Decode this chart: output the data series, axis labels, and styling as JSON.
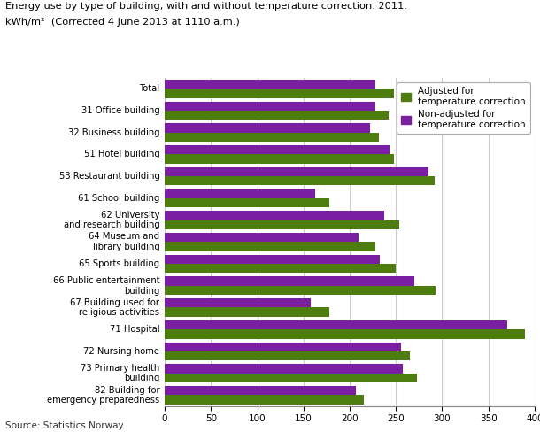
{
  "title_line1": "Energy use by type of building, with and without temperature correction. 2011.",
  "title_line2": "kWh/m²  (Corrected 4 June 2013 at 1110 a.m.)",
  "source": "Source: Statistics Norway.",
  "categories": [
    "Total",
    "31 Office building",
    "32 Business building",
    "51 Hotel building",
    "53 Restaurant building",
    "61 School building",
    "62 University\nand research building",
    "64 Museum and\nlibrary building",
    "65 Sports building",
    "66 Public entertainment\nbuilding",
    "67 Building used for\nreligious activities",
    "71 Hospital",
    "72 Nursing home",
    "73 Primary health\nbuilding",
    "82 Building for\nemergency preparedness"
  ],
  "adjusted": [
    248,
    242,
    232,
    248,
    292,
    178,
    254,
    228,
    250,
    293,
    178,
    390,
    265,
    273,
    215
  ],
  "non_adjusted": [
    228,
    228,
    222,
    243,
    285,
    163,
    237,
    210,
    233,
    270,
    158,
    370,
    256,
    257,
    207
  ],
  "color_adjusted": "#4d7c0f",
  "color_non_adjusted": "#7b1fa2",
  "xlim": [
    0,
    400
  ],
  "xticks": [
    0,
    50,
    100,
    150,
    200,
    250,
    300,
    350,
    400
  ],
  "bar_height": 0.42,
  "legend_adjusted": "Adjusted for\ntemperature correction",
  "legend_non_adjusted": "Non-adjusted for\ntemperature correction",
  "background_color": "#ffffff",
  "grid_color": "#cccccc"
}
